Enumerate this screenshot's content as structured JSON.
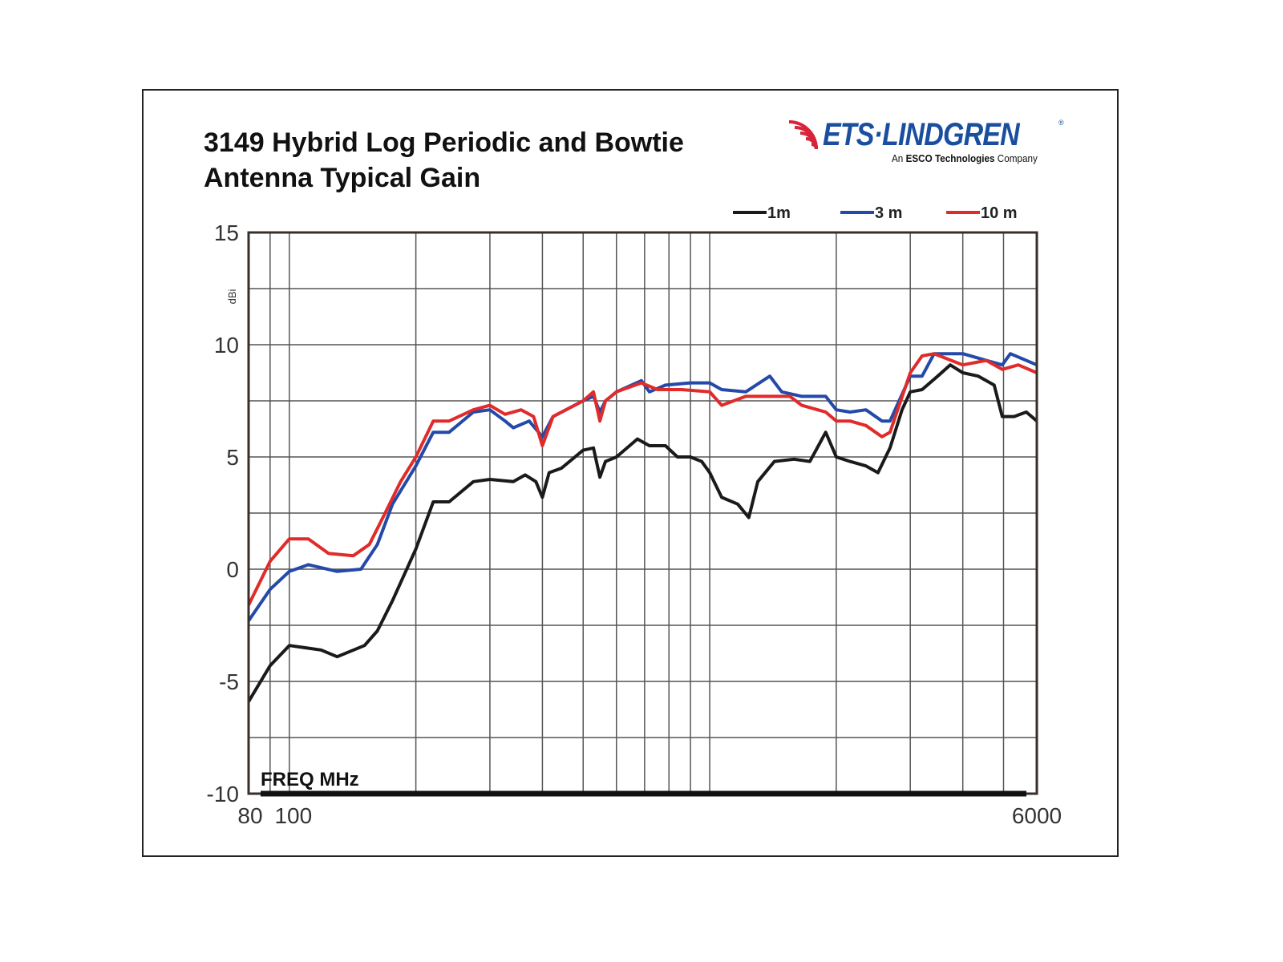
{
  "logo": {
    "name": "ETS·LINDGREN",
    "tagline_prefix": "An",
    "tagline_bold": "ESCO Technologies",
    "tagline_suffix": "Company",
    "mark": "®"
  },
  "colors": {
    "1m": "#1a1a1a",
    "3m": "#2449a8",
    "10m": "#e02b2b",
    "grid": "#555555"
  },
  "chart_data": {
    "type": "line",
    "title_line1": "3149 Hybrid Log Periodic and Bowtie",
    "title_line2": "Antenna Typical Gain",
    "xlabel": "FREQ MHz",
    "ylabel": "dBi",
    "xscale": "log",
    "xlim": [
      80,
      6000
    ],
    "ylim": [
      -10,
      15
    ],
    "yticks": [
      15,
      10,
      5,
      0,
      -5,
      -10
    ],
    "ygrid_step": 2.5,
    "xtick_labels": [
      "80",
      "100",
      "6000"
    ],
    "xtick_values": [
      80,
      100,
      6000
    ],
    "xgrid": [
      90,
      100,
      200,
      300,
      400,
      500,
      600,
      700,
      800,
      900,
      1000,
      2000,
      3000,
      4000,
      5000
    ],
    "grid": true,
    "legend_placement": "top-right",
    "series": [
      {
        "name": "1m",
        "color_key": "1m",
        "points": [
          [
            80,
            -5.9
          ],
          [
            90,
            -4.3
          ],
          [
            100,
            -3.4
          ],
          [
            119,
            -3.6
          ],
          [
            130,
            -3.9
          ],
          [
            151,
            -3.4
          ],
          [
            162,
            -2.75
          ],
          [
            176,
            -1.4
          ],
          [
            200,
            0.9
          ],
          [
            220,
            3.0
          ],
          [
            240,
            3.0
          ],
          [
            274,
            3.9
          ],
          [
            300,
            4.0
          ],
          [
            341,
            3.9
          ],
          [
            364,
            4.2
          ],
          [
            386,
            3.9
          ],
          [
            400,
            3.2
          ],
          [
            415,
            4.3
          ],
          [
            444,
            4.5
          ],
          [
            500,
            5.3
          ],
          [
            529,
            5.4
          ],
          [
            548,
            4.1
          ],
          [
            565,
            4.8
          ],
          [
            600,
            5.0
          ],
          [
            673,
            5.8
          ],
          [
            719,
            5.5
          ],
          [
            785,
            5.5
          ],
          [
            838,
            5.0
          ],
          [
            899,
            5.0
          ],
          [
            957,
            4.8
          ],
          [
            1000,
            4.3
          ],
          [
            1068,
            3.2
          ],
          [
            1166,
            2.9
          ],
          [
            1239,
            2.3
          ],
          [
            1301,
            3.9
          ],
          [
            1425,
            4.8
          ],
          [
            1587,
            4.9
          ],
          [
            1731,
            4.8
          ],
          [
            1888,
            6.1
          ],
          [
            2000,
            5.0
          ],
          [
            2156,
            4.8
          ],
          [
            2353,
            4.6
          ],
          [
            2513,
            4.3
          ],
          [
            2685,
            5.4
          ],
          [
            2868,
            7.1
          ],
          [
            3000,
            7.9
          ],
          [
            3200,
            8.0
          ],
          [
            3486,
            8.6
          ],
          [
            3733,
            9.1
          ],
          [
            4000,
            8.75
          ],
          [
            4355,
            8.6
          ],
          [
            4750,
            8.2
          ],
          [
            4966,
            6.8
          ],
          [
            5300,
            6.8
          ],
          [
            5665,
            7.0
          ],
          [
            6000,
            6.6
          ]
        ]
      },
      {
        "name": "3 m",
        "color_key": "3m",
        "points": [
          [
            80,
            -2.3
          ],
          [
            90,
            -0.9
          ],
          [
            100,
            -0.1
          ],
          [
            111,
            0.2
          ],
          [
            130,
            -0.1
          ],
          [
            148,
            0.0
          ],
          [
            162,
            1.1
          ],
          [
            176,
            2.9
          ],
          [
            200,
            4.6
          ],
          [
            220,
            6.1
          ],
          [
            240,
            6.1
          ],
          [
            274,
            7.0
          ],
          [
            300,
            7.1
          ],
          [
            326,
            6.6
          ],
          [
            341,
            6.3
          ],
          [
            372,
            6.6
          ],
          [
            400,
            5.9
          ],
          [
            424,
            6.8
          ],
          [
            500,
            7.5
          ],
          [
            529,
            7.7
          ],
          [
            548,
            7.0
          ],
          [
            565,
            7.5
          ],
          [
            600,
            7.9
          ],
          [
            688,
            8.4
          ],
          [
            719,
            7.9
          ],
          [
            785,
            8.2
          ],
          [
            899,
            8.3
          ],
          [
            1000,
            8.3
          ],
          [
            1068,
            8.0
          ],
          [
            1218,
            7.9
          ],
          [
            1390,
            8.6
          ],
          [
            1484,
            7.9
          ],
          [
            1656,
            7.7
          ],
          [
            1888,
            7.7
          ],
          [
            2000,
            7.1
          ],
          [
            2156,
            7.0
          ],
          [
            2353,
            7.1
          ],
          [
            2569,
            6.6
          ],
          [
            2685,
            6.6
          ],
          [
            3000,
            8.6
          ],
          [
            3200,
            8.6
          ],
          [
            3418,
            9.6
          ],
          [
            4000,
            9.6
          ],
          [
            4547,
            9.3
          ],
          [
            4966,
            9.1
          ],
          [
            5190,
            9.6
          ],
          [
            6000,
            9.1
          ]
        ]
      },
      {
        "name": "10 m",
        "color_key": "10m",
        "points": [
          [
            80,
            -1.6
          ],
          [
            90,
            0.35
          ],
          [
            100,
            1.35
          ],
          [
            111,
            1.35
          ],
          [
            124,
            0.7
          ],
          [
            142,
            0.6
          ],
          [
            155,
            1.1
          ],
          [
            169,
            2.5
          ],
          [
            184,
            3.9
          ],
          [
            200,
            5.0
          ],
          [
            220,
            6.6
          ],
          [
            240,
            6.6
          ],
          [
            274,
            7.1
          ],
          [
            300,
            7.3
          ],
          [
            326,
            6.9
          ],
          [
            356,
            7.1
          ],
          [
            381,
            6.8
          ],
          [
            400,
            5.5
          ],
          [
            424,
            6.8
          ],
          [
            500,
            7.5
          ],
          [
            529,
            7.9
          ],
          [
            548,
            6.6
          ],
          [
            565,
            7.5
          ],
          [
            600,
            7.9
          ],
          [
            688,
            8.3
          ],
          [
            751,
            8.0
          ],
          [
            857,
            8.0
          ],
          [
            1000,
            7.9
          ],
          [
            1068,
            7.3
          ],
          [
            1218,
            7.7
          ],
          [
            1390,
            7.7
          ],
          [
            1551,
            7.7
          ],
          [
            1656,
            7.3
          ],
          [
            1888,
            7.0
          ],
          [
            2000,
            6.6
          ],
          [
            2156,
            6.6
          ],
          [
            2353,
            6.4
          ],
          [
            2569,
            5.9
          ],
          [
            2685,
            6.1
          ],
          [
            3000,
            8.75
          ],
          [
            3200,
            9.5
          ],
          [
            3418,
            9.6
          ],
          [
            4000,
            9.1
          ],
          [
            4547,
            9.3
          ],
          [
            4966,
            8.9
          ],
          [
            5420,
            9.1
          ],
          [
            6000,
            8.75
          ]
        ]
      }
    ]
  }
}
